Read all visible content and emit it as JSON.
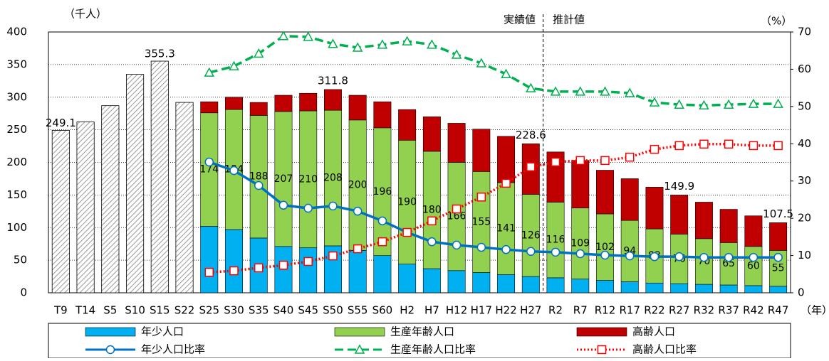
{
  "chart_data": {
    "type": "bar",
    "categories": [
      "T9",
      "T14",
      "S5",
      "S10",
      "S15",
      "S22",
      "S25",
      "S30",
      "S35",
      "S40",
      "S45",
      "S50",
      "S55",
      "S60",
      "H2",
      "H7",
      "H12",
      "H17",
      "H22",
      "H27",
      "R2",
      "R7",
      "R12",
      "R17",
      "R22",
      "R27",
      "R32",
      "R37",
      "R42",
      "R47"
    ],
    "y_label": "（千人）",
    "y2_label": "（%）",
    "x_label": "（年）",
    "annotations": [
      "実績値",
      "推計値"
    ],
    "ylim": [
      0,
      400
    ],
    "yticks": [
      0,
      50,
      100,
      150,
      200,
      250,
      300,
      350,
      400
    ],
    "y2lim": [
      0,
      70
    ],
    "y2ticks": [
      0,
      10,
      20,
      30,
      40,
      50,
      60,
      70
    ],
    "grid": true,
    "series": [
      {
        "kind": "hatched",
        "color": "#c8c8c8",
        "values": [
          249.1,
          262,
          287,
          335,
          355.3,
          292,
          null,
          null,
          null,
          null,
          null,
          null,
          null,
          null,
          null,
          null,
          null,
          null,
          null,
          null,
          null,
          null,
          null,
          null,
          null,
          null,
          null,
          null,
          null,
          null
        ],
        "value_labels": [
          "249.1",
          null,
          null,
          null,
          "355.3",
          null,
          null,
          null,
          null,
          null,
          null,
          null,
          null,
          null,
          null,
          null,
          null,
          null,
          null,
          null,
          null,
          null,
          null,
          null,
          null,
          null,
          null,
          null,
          null,
          null
        ]
      },
      {
        "name": "年少人口",
        "kind": "stack",
        "color": "#00b0f0",
        "values": [
          null,
          null,
          null,
          null,
          null,
          null,
          102,
          97,
          84,
          71,
          69,
          72,
          65,
          57,
          44,
          37,
          34,
          31,
          28,
          25,
          23,
          21,
          19,
          17,
          15,
          14,
          13,
          12,
          11,
          10
        ]
      },
      {
        "name": "生産年齢人口",
        "kind": "stack",
        "color": "#92d050",
        "show_labels": true,
        "values": [
          null,
          null,
          null,
          null,
          null,
          null,
          174,
          184,
          188,
          207,
          210,
          208,
          200,
          196,
          190,
          180,
          166,
          155,
          141,
          126,
          116,
          109,
          102,
          94,
          83,
          76,
          70,
          65,
          60,
          55
        ]
      },
      {
        "name": "高齢人口",
        "kind": "stack",
        "color": "#c00000",
        "values": [
          null,
          null,
          null,
          null,
          null,
          null,
          17,
          19,
          20,
          25,
          27,
          31.8,
          38,
          40,
          47,
          53,
          60,
          65,
          71,
          77.6,
          77,
          73,
          67,
          64,
          64,
          59.9,
          56,
          51,
          47,
          42.5
        ],
        "total_labels": [
          null,
          null,
          null,
          null,
          null,
          null,
          null,
          null,
          null,
          null,
          null,
          "311.8",
          null,
          null,
          null,
          null,
          null,
          null,
          null,
          "228.6",
          null,
          null,
          null,
          null,
          null,
          "149.9",
          null,
          null,
          null,
          "107.5"
        ]
      },
      {
        "name": "年少人口比率",
        "kind": "line",
        "axis": "y2",
        "color": "#0070c0",
        "marker": "circle",
        "dash": "solid",
        "values": [
          null,
          null,
          null,
          null,
          null,
          null,
          35.1,
          32.8,
          28.8,
          23.5,
          22.7,
          23.3,
          21.9,
          19.3,
          16.2,
          13.7,
          12.8,
          12.2,
          11.6,
          11.1,
          10.9,
          10.5,
          10.1,
          9.9,
          9.7,
          9.7,
          9.5,
          9.5,
          9.5,
          9.5
        ]
      },
      {
        "name": "生産年齢人口比率",
        "kind": "line",
        "axis": "y2",
        "color": "#00b050",
        "marker": "triangle",
        "dash": "dashed",
        "values": [
          null,
          null,
          null,
          null,
          null,
          null,
          59.1,
          60.8,
          64.2,
          68.9,
          68.7,
          66.8,
          65.8,
          66.6,
          67.5,
          66.6,
          63.9,
          61.6,
          58.7,
          54.9,
          54,
          54,
          54,
          53.6,
          51.1,
          50.5,
          50.3,
          50.5,
          50.7,
          50.7
        ]
      },
      {
        "name": "高齢人口比率",
        "kind": "line",
        "axis": "y2",
        "color": "#ff0000",
        "marker": "square",
        "dash": "dotted",
        "values": [
          null,
          null,
          null,
          null,
          null,
          null,
          5.5,
          5.9,
          6.7,
          7.4,
          8.4,
          9.9,
          11.8,
          13.7,
          16.2,
          19.3,
          22.5,
          25.7,
          29.4,
          33.8,
          35.1,
          35.5,
          35.5,
          36.4,
          38.5,
          39.5,
          39.9,
          39.9,
          39.5,
          39.5
        ]
      }
    ]
  }
}
